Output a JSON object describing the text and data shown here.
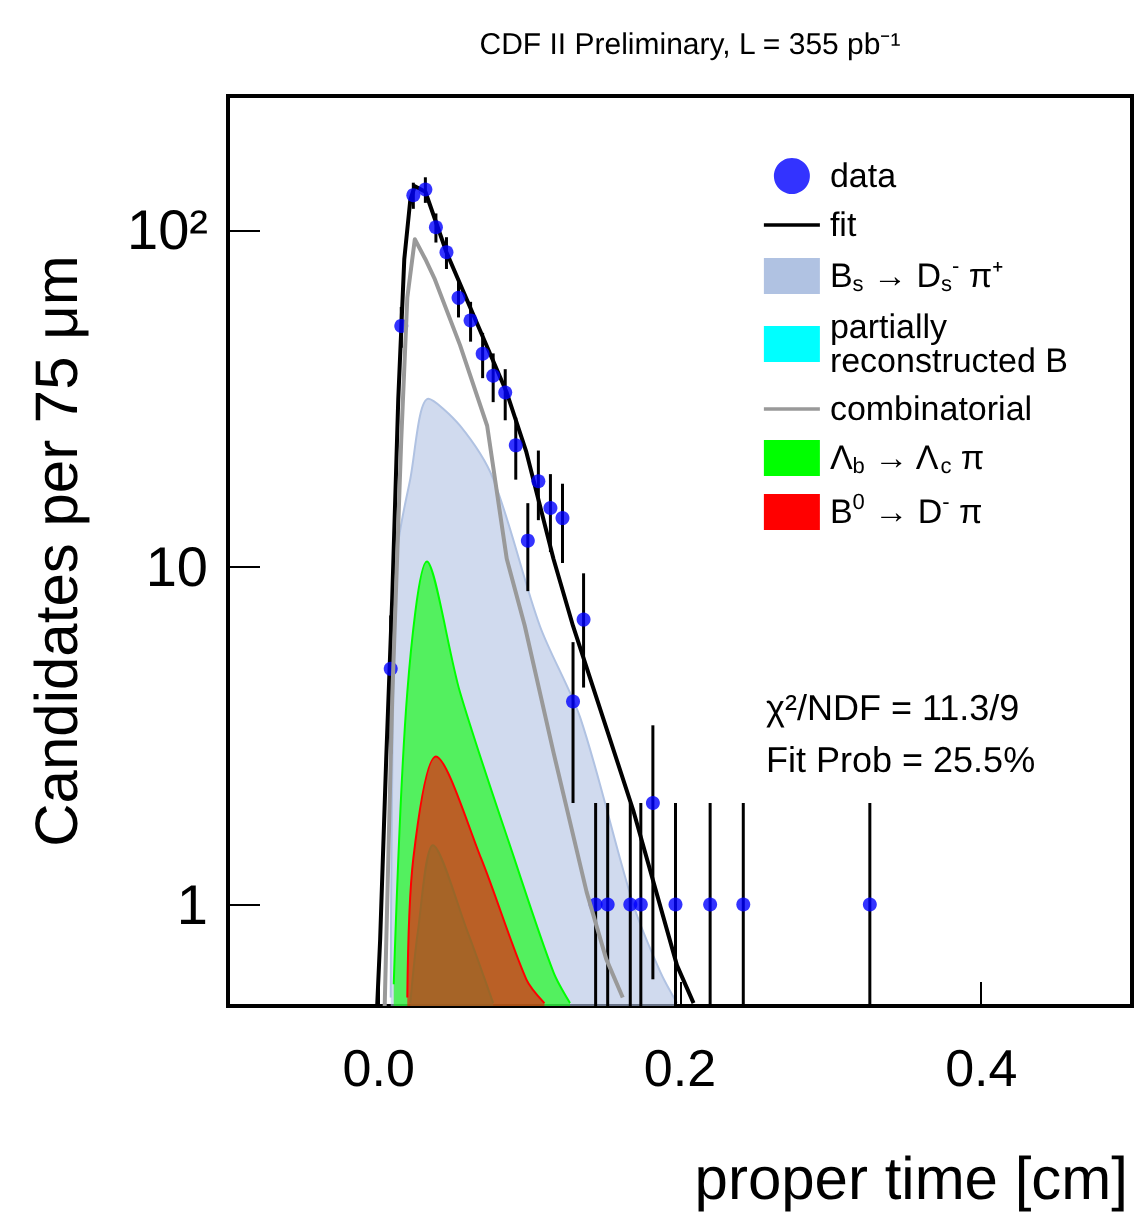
{
  "chart_data": {
    "type": "line",
    "title": "CDF II Preliminary, L = 355 pb⁻¹",
    "xlabel": "proper time [cm]",
    "ylabel": "Candidates per 75 μm",
    "xlim": [
      -0.1,
      0.5
    ],
    "xticks": [
      {
        "value": 0,
        "label": "0.0"
      },
      0.2,
      0.4
    ],
    "ylim": [
      0.5,
      250
    ],
    "yticks": [
      1,
      10,
      {
        "value": 100,
        "label": "10²"
      }
    ],
    "log": "y",
    "grid": false,
    "legend": "top right",
    "annotations": [
      "χ²/NDF = 11.3/9",
      "Fit Prob = 25.5%"
    ],
    "series": [
      {
        "name": "data",
        "type": "scatter",
        "color": "#0000ff",
        "marker": "circle",
        "x": [
          0.008,
          0.015,
          0.023,
          0.031,
          0.038,
          0.045,
          0.053,
          0.061,
          0.069,
          0.076,
          0.084,
          0.091,
          0.099,
          0.106,
          0.114,
          0.122,
          0.129,
          0.136,
          0.144,
          0.152,
          0.167,
          0.174,
          0.182,
          0.197,
          0.22,
          0.242,
          0.326
        ],
        "values": [
          5,
          52,
          127,
          132,
          102,
          86,
          63,
          54,
          43,
          37,
          33,
          23,
          12,
          18,
          15,
          14,
          4,
          7,
          1,
          1,
          1,
          1,
          2,
          1,
          1,
          1,
          1
        ],
        "errors": [
          2.2,
          7.2,
          11.3,
          11.5,
          10.1,
          9.3,
          7.9,
          7.3,
          6.6,
          6.1,
          5.7,
          4.8,
          3.5,
          4.2,
          3.9,
          3.7,
          2,
          2.6,
          [
            0.5,
            2
          ],
          [
            0.5,
            2
          ],
          [
            0.5,
            2
          ],
          [
            0.5,
            2
          ],
          1.4,
          [
            0.5,
            2
          ],
          [
            0.5,
            2
          ],
          [
            0.5,
            2
          ],
          [
            0.5,
            2
          ]
        ]
      },
      {
        "name": "fit",
        "type": "line",
        "color": "#000000",
        "line_style": "solid",
        "x": [
          -0.001,
          0.001,
          0.005,
          0.009,
          0.013,
          0.017,
          0.021,
          0.024,
          0.031,
          0.045,
          0.085,
          0.098,
          0.116,
          0.129,
          0.169,
          0.198,
          0.209
        ],
        "values": [
          0.5,
          0.79,
          2.7,
          8.1,
          31.5,
          82,
          123,
          135,
          130,
          86,
          33,
          22,
          10.6,
          6.7,
          1.9,
          0.66,
          0.51
        ]
      },
      {
        "name": "B$_{s}$ → D$_{s}$$^{-}$ π⁺",
        "type": "area",
        "color": "#b0c2e2",
        "x": [
          0.008,
          0.012,
          0.021,
          0.033,
          0.054,
          0.076,
          0.107,
          0.134,
          0.169,
          0.187,
          0.198
        ],
        "values": [
          0.53,
          10.6,
          18.3,
          31.6,
          26.3,
          18.3,
          6.7,
          3.56,
          1.0,
          0.63,
          0.51
        ]
      },
      {
        "name": "partially reconstructed B",
        "type": "area",
        "color": "#00ffff",
        "x": [
          0.021,
          0.026,
          0.036,
          0.059,
          0.076
        ],
        "values": [
          0.51,
          0.83,
          1.5,
          0.83,
          0.51
        ]
      },
      {
        "name": "combinatorial",
        "type": "line",
        "color": "#999999",
        "line_style": "solid",
        "x": [
          0.004,
          0.009,
          0.015,
          0.019,
          0.024,
          0.031,
          0.037,
          0.054,
          0.072,
          0.085,
          0.097,
          0.116,
          0.138,
          0.151,
          0.162
        ],
        "values": [
          0.5,
          4.1,
          24,
          63,
          94,
          82,
          72,
          45.6,
          26.3,
          10.6,
          6.7,
          2.83,
          1.09,
          0.69,
          0.53
        ]
      },
      {
        "name": "Λ$_{b}$ → Λ$_{c}$ π",
        "type": "area",
        "color": "#00ff00",
        "x": [
          0.01,
          0.019,
          0.032,
          0.054,
          0.09,
          0.116,
          0.127
        ],
        "values": [
          0.58,
          4.26,
          10.4,
          4.26,
          1.37,
          0.63,
          0.51
        ]
      },
      {
        "name": "B$^{0}$ → D$^{-}$ π",
        "type": "area",
        "color": "#ff0000",
        "x": [
          0.019,
          0.023,
          0.038,
          0.068,
          0.098,
          0.11
        ],
        "values": [
          0.53,
          1.37,
          2.75,
          1.37,
          0.6,
          0.51
        ]
      }
    ]
  }
}
